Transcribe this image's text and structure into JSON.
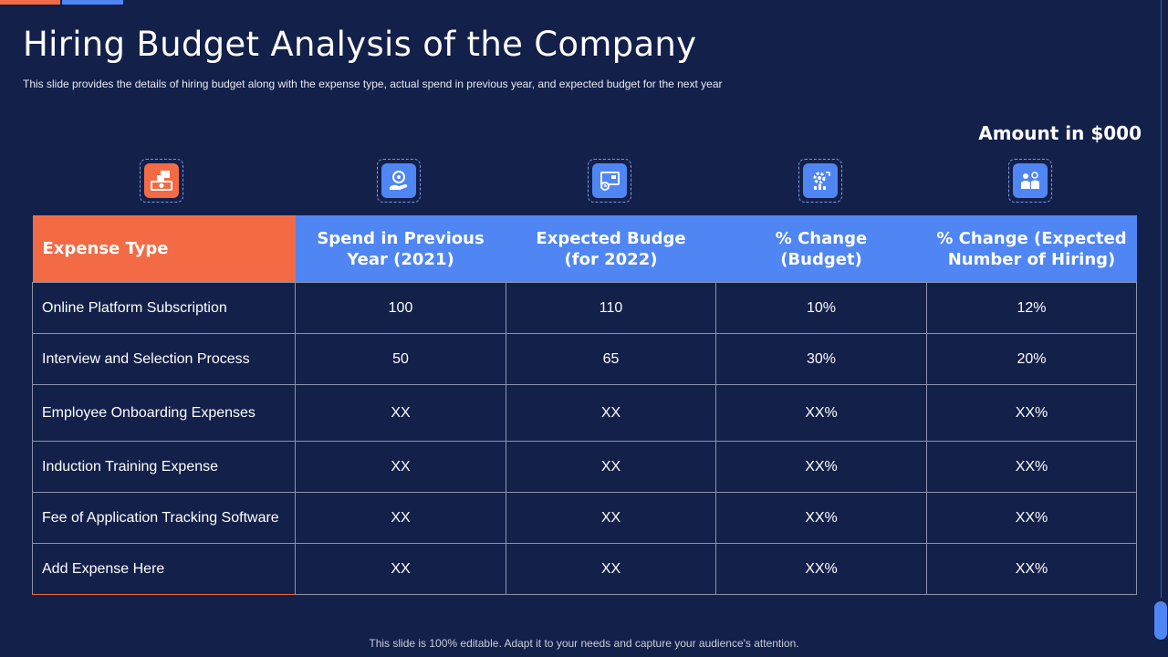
{
  "slide": {
    "title": "Hiring Budget Analysis of the Company",
    "subtitle": "This slide provides  the details of hiring budget  along with the expense type,  actual spend in previous  year, and expected budget for  the next year",
    "amount_note": "Amount in $000",
    "footer": "This slide is 100% editable. Adapt it to your needs and capture your audience's attention."
  },
  "colors": {
    "background": "#13204a",
    "accent_orange": "#f26b44",
    "accent_blue": "#4f86f3",
    "grid": "#8c93a8"
  },
  "icons": [
    "money-icon",
    "coin-hand-icon",
    "monitor-budget-icon",
    "gear-growth-icon",
    "people-icon"
  ],
  "table": {
    "headers": [
      [
        "Expense Type"
      ],
      [
        "Spend in Previous",
        "Year (2021)"
      ],
      [
        "Expected Budge",
        "(for 2022)"
      ],
      [
        "% Change",
        "(Budget)"
      ],
      [
        "% Change (Expected",
        "Number of Hiring)"
      ]
    ],
    "rows": [
      [
        "Online Platform Subscription",
        "100",
        "110",
        "10%",
        "12%"
      ],
      [
        "Interview  and Selection Process",
        "50",
        "65",
        "30%",
        "20%"
      ],
      [
        "Employee Onboarding Expenses",
        "XX",
        "XX",
        "XX%",
        "XX%"
      ],
      [
        "Induction  Training Expense",
        "XX",
        "XX",
        "XX%",
        "XX%"
      ],
      [
        "Fee of Application Tracking Software",
        "XX",
        "XX",
        "XX%",
        "XX%"
      ],
      [
        "Add Expense Here",
        "XX",
        "XX",
        "XX%",
        "XX%"
      ]
    ]
  }
}
